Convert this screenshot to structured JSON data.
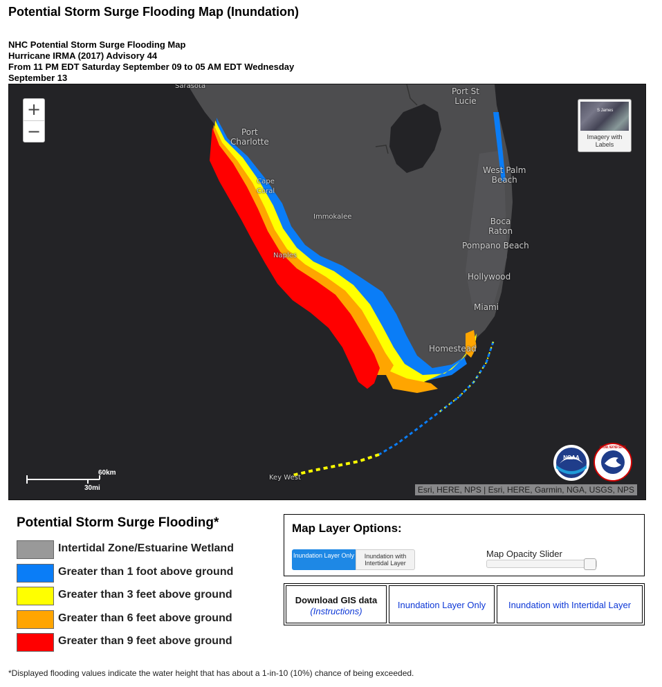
{
  "page_title": "Potential Storm Surge Flooding Map (Inundation)",
  "caption": {
    "line1": "NHC Potential Storm Surge Flooding Map",
    "line2": "Hurricane IRMA (2017) Advisory 44",
    "line3": "From 11 PM EDT Saturday September 09 to 05 AM EDT Wednesday",
    "line4": "September 13"
  },
  "map": {
    "zoom_in": "+",
    "zoom_out": "−",
    "basemap_label": "Imagery with Labels",
    "thumb_label": "S James",
    "scale_km": "60km",
    "scale_mi": "30mi",
    "attribution": "Esri, HERE, NPS | Esri, HERE, Garmin, NGA, USGS, NPS",
    "places": {
      "sarasota": "Sarasota",
      "port_st_lucie_1": "Port St",
      "port_st_lucie_2": "Lucie",
      "port_charlotte_1": "Port",
      "port_charlotte_2": "Charlotte",
      "cape_coral_1": "Cape",
      "cape_coral_2": "Coral",
      "west_palm_1": "West Palm",
      "west_palm_2": "Beach",
      "immokalee": "Immokalee",
      "boca_1": "Boca",
      "boca_2": "Raton",
      "pompano": "Pompano Beach",
      "naples": "Naples",
      "hollywood": "Hollywood",
      "miami": "Miami",
      "homestead": "Homestead",
      "key_west": "Key West"
    },
    "noaa_text": "NOAA",
    "nws_text": "NATIONAL WEATHER SERVICE"
  },
  "legend": {
    "title": "Potential Storm Surge Flooding*",
    "items": [
      {
        "label": "Intertidal Zone/Estuarine Wetland",
        "color": "#999999"
      },
      {
        "label": "Greater than 1 foot above ground",
        "color": "#0a7df7"
      },
      {
        "label": "Greater than 3 feet above ground",
        "color": "#ffff00"
      },
      {
        "label": "Greater than 6 feet above ground",
        "color": "#ffa500"
      },
      {
        "label": "Greater than 9 feet above ground",
        "color": "#ff0000"
      }
    ]
  },
  "options": {
    "title": "Map Layer Options:",
    "btn_inundation": "Inundation Layer Only",
    "btn_intertidal": "Inundation with Intertidal Layer",
    "opacity_label": "Map Opacity Slider",
    "opacity_value": 1.0
  },
  "downloads": {
    "heading": "Download GIS data",
    "instructions": "(Instructions)",
    "link1": "Inundation Layer Only",
    "link2": "Inundation with Intertidal Layer"
  },
  "footnote": "*Displayed flooding values indicate the water height that has about a 1-in-10 (10%) chance of being exceeded."
}
